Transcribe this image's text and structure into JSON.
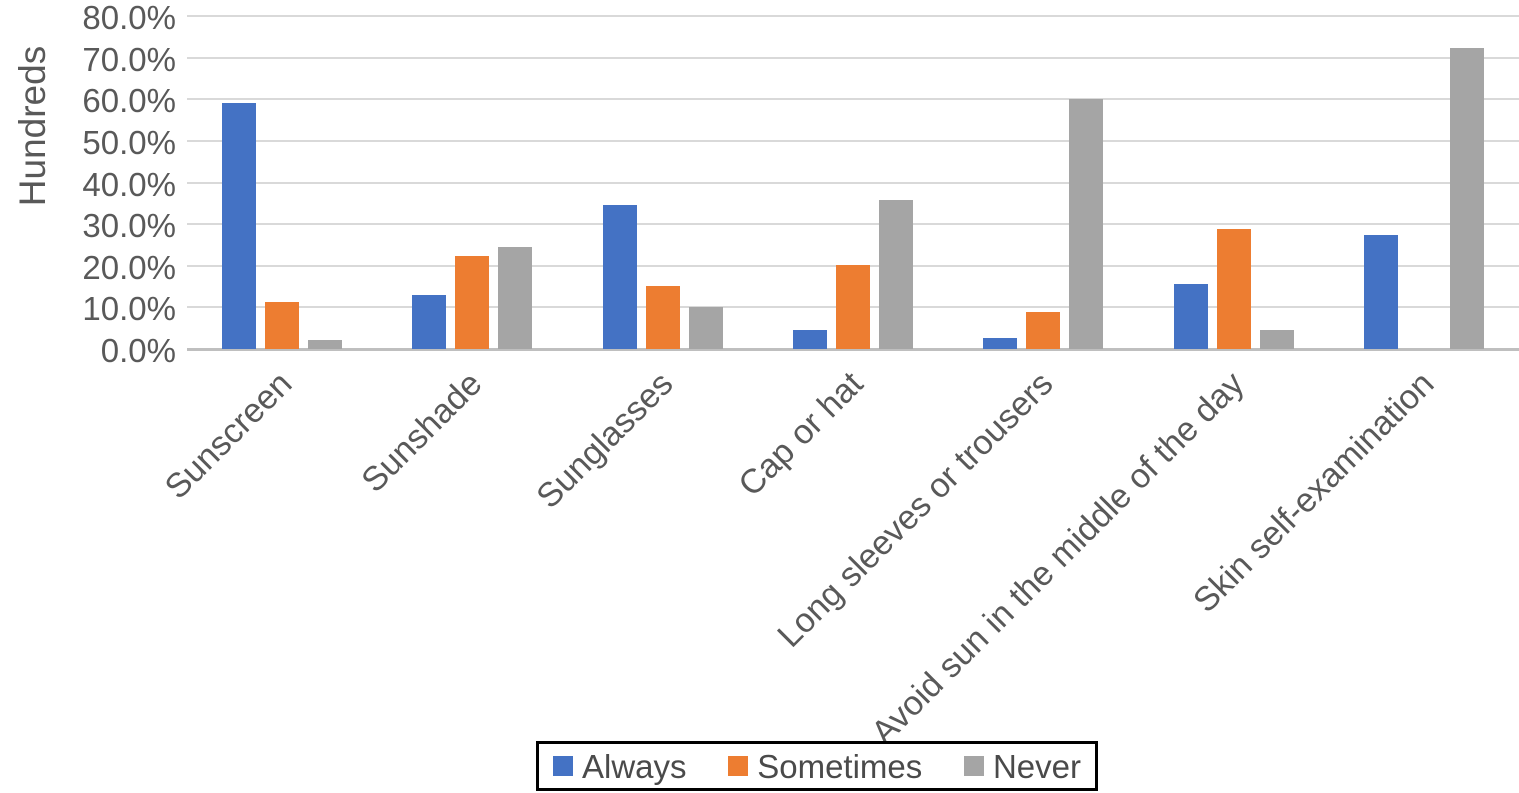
{
  "chart_data": {
    "type": "bar",
    "title": "",
    "xlabel": "",
    "ylabel": "Hundreds",
    "ylim": [
      0,
      80
    ],
    "ytick_step": 10,
    "ytick_labels": [
      "0.0%",
      "10.0%",
      "20.0%",
      "30.0%",
      "40.0%",
      "50.0%",
      "60.0%",
      "70.0%",
      "80.0%"
    ],
    "grid": true,
    "legend_position": "bottom",
    "categories": [
      "Sunscreen",
      "Sunshade",
      "Sunglasses",
      "Cap or hat",
      "Long sleeves or trousers",
      "Avoid sun in the middle of the day",
      "Skin self-examination"
    ],
    "series": [
      {
        "name": "Always",
        "color": "#4472C4",
        "values": [
          59.0,
          12.9,
          34.6,
          4.6,
          2.7,
          15.5,
          27.4
        ]
      },
      {
        "name": "Sometimes",
        "color": "#ED7D31",
        "values": [
          11.3,
          22.3,
          15.1,
          20.3,
          8.8,
          28.8,
          0.0
        ]
      },
      {
        "name": "Never",
        "color": "#A5A5A5",
        "values": [
          2.2,
          24.4,
          10.0,
          35.9,
          60.0,
          4.6,
          72.2
        ]
      }
    ]
  },
  "colors": {
    "gridline": "#D9D9D9",
    "axis_line": "#BFBFBF",
    "text": "#595959",
    "legend_border": "#000000",
    "background": "#FFFFFF"
  }
}
